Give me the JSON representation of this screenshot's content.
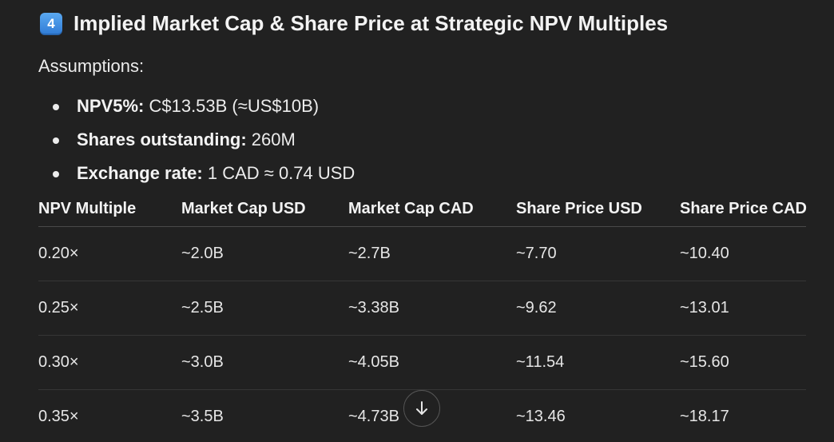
{
  "heading": {
    "keycap": "4",
    "title": "Implied Market Cap & Share Price at Strategic NPV Multiples"
  },
  "assumptions": {
    "label": "Assumptions:",
    "items": [
      {
        "label": "NPV5%:",
        "value": " C$13.53B (≈US$10B)"
      },
      {
        "label": "Shares outstanding:",
        "value": " 260M"
      },
      {
        "label": "Exchange rate:",
        "value": " 1 CAD ≈ 0.74 USD"
      }
    ]
  },
  "table": {
    "headers": [
      "NPV Multiple",
      "Market Cap USD",
      "Market Cap CAD",
      "Share Price USD",
      "Share Price CAD"
    ],
    "rows": [
      [
        "0.20×",
        "~2.0B",
        "~2.7B",
        "~7.70",
        "~10.40"
      ],
      [
        "0.25×",
        "~2.5B",
        "~3.38B",
        "~9.62",
        "~13.01"
      ],
      [
        "0.30×",
        "~3.0B",
        "~4.05B",
        "~11.54",
        "~15.60"
      ],
      [
        "0.35×",
        "~3.5B",
        "~4.73B",
        "~13.46",
        "~18.17"
      ]
    ]
  },
  "scroll_button": {
    "icon": "arrow-down-icon"
  }
}
